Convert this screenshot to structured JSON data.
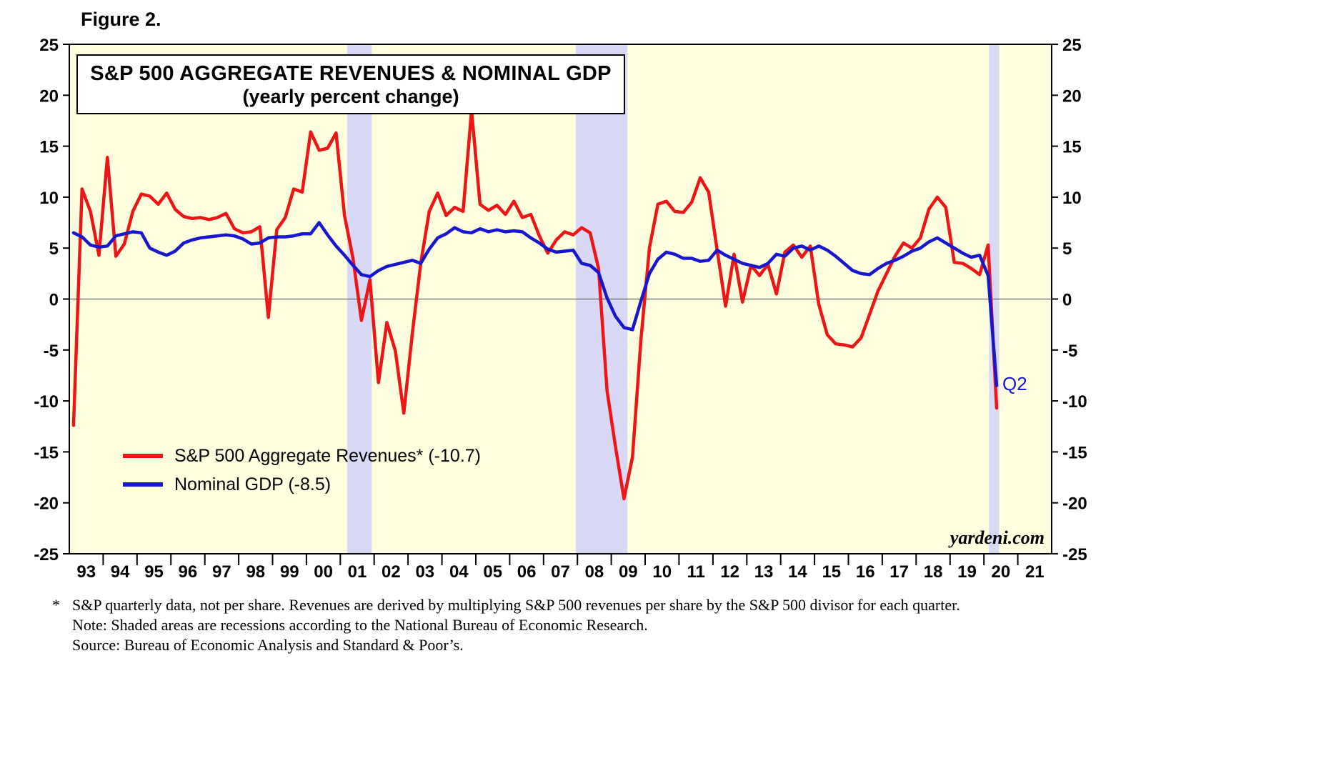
{
  "figure_label": "Figure 2.",
  "chart_data": {
    "type": "line",
    "title": "S&P 500 AGGREGATE REVENUES & NOMINAL GDP",
    "subtitle": "(yearly percent change)",
    "ylabel": "yearly percent change",
    "ylim": [
      -25,
      25
    ],
    "y_tick_step": 5,
    "y_ticks": [
      25,
      20,
      15,
      10,
      5,
      0,
      -5,
      -10,
      -15,
      -20,
      -25
    ],
    "x_range": [
      1993,
      2022
    ],
    "x_year_labels": [
      "93",
      "94",
      "95",
      "96",
      "97",
      "98",
      "99",
      "00",
      "01",
      "02",
      "03",
      "04",
      "05",
      "06",
      "07",
      "08",
      "09",
      "10",
      "11",
      "12",
      "13",
      "14",
      "15",
      "16",
      "17",
      "18",
      "19",
      "20",
      "21"
    ],
    "grid": false,
    "legend_position": "lower-left-inside",
    "plot_bg": "#ffffe0",
    "band_color": "#d9d9f5",
    "zero_line_color": "#444444",
    "recession_bands": [
      [
        2001.2,
        2001.93
      ],
      [
        2007.95,
        2009.48
      ],
      [
        2020.15,
        2020.45
      ]
    ],
    "series": [
      {
        "id": "sp500-revenues",
        "name": "S&P 500 Aggregate Revenues* (-10.7)",
        "color": "#ed1515",
        "start": 1993.125,
        "step": 0.25,
        "values": [
          -12.4,
          10.8,
          8.6,
          4.3,
          13.9,
          4.2,
          5.4,
          8.6,
          10.3,
          10.1,
          9.3,
          10.4,
          8.8,
          8.1,
          7.9,
          8.0,
          7.8,
          8.0,
          8.4,
          6.9,
          6.5,
          6.6,
          7.1,
          -1.8,
          6.8,
          8.0,
          10.8,
          10.5,
          16.4,
          14.6,
          14.8,
          16.3,
          8.2,
          4.0,
          -2.1,
          1.9,
          -8.2,
          -2.3,
          -5.1,
          -11.2,
          -3.4,
          3.5,
          8.6,
          10.4,
          8.2,
          9.0,
          8.6,
          18.5,
          9.3,
          8.7,
          9.2,
          8.3,
          9.6,
          8.0,
          8.3,
          6.2,
          4.5,
          5.8,
          6.6,
          6.3,
          7.0,
          6.5,
          3.0,
          -9.0,
          -14.5,
          -19.6,
          -15.5,
          -4.0,
          5.0,
          9.3,
          9.6,
          8.6,
          8.5,
          9.5,
          11.9,
          10.5,
          4.8,
          -0.7,
          4.4,
          -0.3,
          3.3,
          2.3,
          3.4,
          0.5,
          4.6,
          5.3,
          4.1,
          5.2,
          -0.5,
          -3.5,
          -4.4,
          -4.5,
          -4.7,
          -3.8,
          -1.5,
          0.8,
          2.5,
          4.2,
          5.5,
          5.0,
          6.0,
          8.8,
          10.0,
          9.0,
          3.6,
          3.5,
          3.0,
          2.4,
          5.3,
          -10.7
        ]
      },
      {
        "id": "nominal-gdp",
        "name": "Nominal GDP (-8.5)",
        "color": "#1717cd",
        "start": 1993.125,
        "step": 0.25,
        "values": [
          6.5,
          6.1,
          5.3,
          5.1,
          5.2,
          6.2,
          6.4,
          6.6,
          6.5,
          5.0,
          4.6,
          4.3,
          4.7,
          5.5,
          5.8,
          6.0,
          6.1,
          6.2,
          6.3,
          6.2,
          5.9,
          5.4,
          5.5,
          6.0,
          6.1,
          6.1,
          6.2,
          6.4,
          6.4,
          7.5,
          6.3,
          5.2,
          4.3,
          3.3,
          2.4,
          2.2,
          2.8,
          3.2,
          3.4,
          3.6,
          3.8,
          3.5,
          4.9,
          6.0,
          6.4,
          7.0,
          6.6,
          6.5,
          6.9,
          6.6,
          6.8,
          6.6,
          6.7,
          6.6,
          6.0,
          5.5,
          4.9,
          4.6,
          4.7,
          4.8,
          3.5,
          3.3,
          2.6,
          0.1,
          -1.7,
          -2.8,
          -3.0,
          -0.2,
          2.5,
          3.9,
          4.6,
          4.4,
          4.0,
          4.0,
          3.7,
          3.8,
          4.8,
          4.3,
          3.9,
          3.5,
          3.3,
          3.1,
          3.5,
          4.4,
          4.2,
          5.0,
          5.2,
          4.8,
          5.2,
          4.8,
          4.2,
          3.5,
          2.8,
          2.5,
          2.4,
          3.0,
          3.5,
          3.8,
          4.2,
          4.7,
          5.0,
          5.6,
          6.0,
          5.5,
          5.0,
          4.5,
          4.1,
          4.3,
          2.3,
          -8.5
        ]
      }
    ],
    "annotations": [
      {
        "text": "Q2",
        "x": 2020.55,
        "y": -8.3,
        "color": "#1717cd"
      }
    ],
    "watermark": "yardeni.com"
  },
  "legend": {
    "items": [
      {
        "label": "S&P 500 Aggregate Revenues* (-10.7)",
        "color": "#ed1515"
      },
      {
        "label": "Nominal GDP (-8.5)",
        "color": "#1717cd"
      }
    ]
  },
  "footnotes": {
    "star": "*",
    "line1": "S&P quarterly data, not per share. Revenues are derived by multiplying S&P 500 revenues per share by the S&P 500 divisor for each quarter.",
    "line2": "Note: Shaded areas are recessions according to the National Bureau of Economic Research.",
    "line3": "Source: Bureau of Economic Analysis and Standard & Poor’s."
  }
}
